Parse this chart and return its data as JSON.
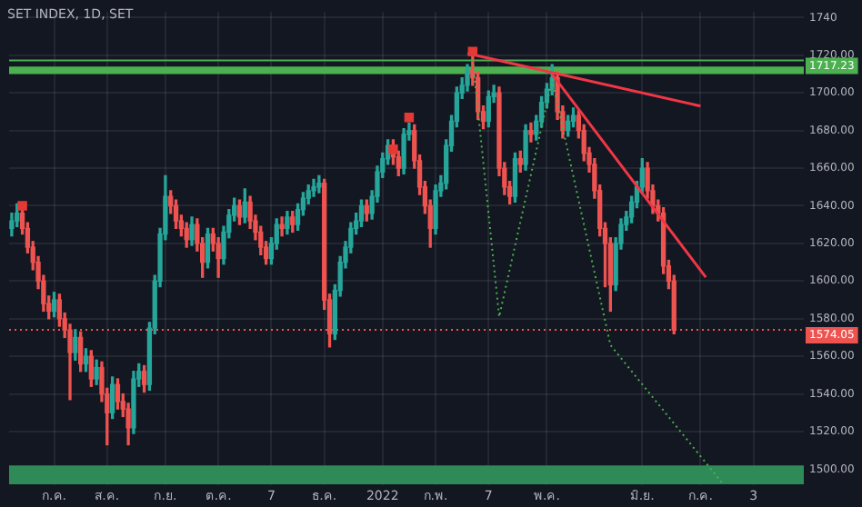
{
  "chart_data": {
    "type": "candlestick",
    "title": "SET INDEX, 1D, SET",
    "categories": [
      null,
      null,
      null,
      null,
      null,
      null,
      null,
      null,
      "ก.ค.",
      null,
      null,
      null,
      null,
      null,
      null,
      null,
      null,
      null,
      "ส.ค.",
      null,
      null,
      null,
      null,
      null,
      null,
      null,
      null,
      null,
      null,
      "ก.ย.",
      null,
      null,
      null,
      null,
      null,
      null,
      null,
      null,
      null,
      "ต.ค.",
      null,
      null,
      null,
      null,
      null,
      null,
      null,
      null,
      null,
      "7",
      null,
      null,
      null,
      null,
      null,
      null,
      null,
      null,
      null,
      "ธ.ค.",
      null,
      null,
      null,
      null,
      null,
      null,
      null,
      null,
      null,
      null,
      "2022",
      null,
      null,
      null,
      null,
      null,
      null,
      null,
      null,
      null,
      "ก.พ.",
      null,
      null,
      null,
      null,
      null,
      null,
      null,
      null,
      null,
      "7",
      null,
      null,
      null,
      null,
      null,
      null,
      null,
      null,
      null,
      null,
      "พ.ค.",
      null,
      null,
      null,
      null,
      null,
      null,
      null,
      null,
      null,
      null,
      null,
      null,
      null,
      null,
      null,
      null,
      null,
      "มิ.ย.",
      null,
      null,
      null,
      null,
      null,
      null,
      null,
      null,
      null,
      null,
      "ก.ค.",
      null,
      null,
      null,
      null,
      null,
      null,
      null,
      null,
      null,
      "3",
      null,
      null,
      null,
      null,
      null,
      null,
      null,
      null,
      null
    ],
    "colors": [
      "#26a69a",
      "#26a69a",
      "#ef5350",
      "#ef5350",
      "#ef5350",
      "#ef5350",
      "#ef5350",
      "#ef5350",
      "#26a69a",
      "#ef5350",
      "#ef5350",
      "#ef5350",
      "#26a69a",
      "#ef5350",
      "#26a69a",
      "#ef5350",
      "#26a69a",
      "#ef5350",
      "#ef5350",
      "#26a69a",
      "#ef5350",
      "#ef5350",
      "#ef5350",
      "#26a69a",
      "#26a69a",
      "#ef5350",
      "#26a69a",
      "#26a69a",
      "#26a69a",
      "#26a69a",
      "#ef5350",
      "#ef5350",
      "#ef5350",
      "#ef5350",
      "#26a69a",
      "#ef5350",
      "#ef5350",
      "#26a69a",
      "#ef5350",
      "#ef5350",
      "#26a69a",
      "#26a69a",
      "#26a69a",
      "#ef5350",
      "#26a69a",
      "#ef5350",
      "#ef5350",
      "#ef5350",
      "#ef5350",
      "#26a69a",
      "#26a69a",
      "#ef5350",
      "#26a69a",
      "#ef5350",
      "#26a69a",
      "#26a69a",
      "#26a69a",
      "#26a69a",
      "#26a69a",
      "#ef5350",
      "#ef5350",
      "#26a69a",
      "#26a69a",
      "#26a69a",
      "#26a69a",
      "#26a69a",
      "#26a69a",
      "#ef5350",
      "#26a69a",
      "#26a69a",
      "#26a69a",
      "#26a69a",
      "#ef5350",
      "#ef5350",
      "#26a69a",
      "#26a69a",
      "#ef5350",
      "#ef5350",
      "#ef5350",
      "#ef5350",
      "#26a69a",
      "#26a69a",
      "#26a69a",
      "#26a69a",
      "#26a69a",
      "#26a69a",
      "#26a69a",
      "#ef5350",
      "#ef5350",
      "#ef5350",
      "#26a69a",
      "#26a69a",
      "#ef5350",
      "#ef5350",
      "#ef5350",
      "#26a69a",
      "#ef5350",
      "#26a69a",
      "#ef5350",
      "#26a69a",
      "#26a69a",
      "#26a69a",
      "#26a69a",
      "#ef5350",
      "#ef5350",
      "#26a69a",
      "#26a69a",
      "#ef5350",
      "#ef5350",
      "#ef5350",
      "#ef5350",
      "#ef5350",
      "#ef5350",
      "#ef5350",
      "#26a69a",
      "#26a69a",
      "#26a69a",
      "#26a69a",
      "#26a69a",
      "#26a69a",
      "#ef5350",
      "#ef5350",
      "#ef5350",
      "#ef5350",
      "#ef5350",
      "#ef5350",
      null,
      null,
      null,
      null,
      null,
      null,
      null,
      null,
      null,
      null,
      null,
      null,
      null,
      null,
      null,
      null,
      null,
      null,
      null,
      null,
      null,
      null,
      null,
      null
    ],
    "ohlc": [
      [
        1628,
        1636,
        1624,
        1632
      ],
      [
        1632,
        1641,
        1629,
        1636
      ],
      [
        1636,
        1639,
        1625,
        1628
      ],
      [
        1628,
        1631,
        1615,
        1618
      ],
      [
        1618,
        1621,
        1606,
        1610
      ],
      [
        1610,
        1613,
        1596,
        1600
      ],
      [
        1600,
        1603,
        1584,
        1588
      ],
      [
        1588,
        1592,
        1580,
        1584
      ],
      [
        1584,
        1594,
        1581,
        1590
      ],
      [
        1590,
        1593,
        1576,
        1580
      ],
      [
        1580,
        1583,
        1570,
        1574
      ],
      [
        1574,
        1577,
        1537,
        1562
      ],
      [
        1562,
        1574,
        1558,
        1570
      ],
      [
        1570,
        1573,
        1552,
        1556
      ],
      [
        1556,
        1564,
        1552,
        1560
      ],
      [
        1560,
        1563,
        1544,
        1548
      ],
      [
        1548,
        1558,
        1545,
        1554
      ],
      [
        1554,
        1557,
        1536,
        1540
      ],
      [
        1540,
        1543,
        1513,
        1530
      ],
      [
        1530,
        1549,
        1527,
        1545
      ],
      [
        1545,
        1548,
        1532,
        1536
      ],
      [
        1536,
        1540,
        1528,
        1532
      ],
      [
        1532,
        1535,
        1513,
        1522
      ],
      [
        1522,
        1552,
        1519,
        1548
      ],
      [
        1548,
        1556,
        1544,
        1552
      ],
      [
        1552,
        1555,
        1541,
        1545
      ],
      [
        1545,
        1578,
        1542,
        1575
      ],
      [
        1575,
        1603,
        1572,
        1600
      ],
      [
        1600,
        1628,
        1597,
        1625
      ],
      [
        1625,
        1656,
        1622,
        1645
      ],
      [
        1645,
        1648,
        1636,
        1640
      ],
      [
        1640,
        1643,
        1628,
        1632
      ],
      [
        1632,
        1635,
        1624,
        1628
      ],
      [
        1628,
        1631,
        1618,
        1622
      ],
      [
        1622,
        1634,
        1619,
        1630
      ],
      [
        1630,
        1633,
        1616,
        1620
      ],
      [
        1620,
        1623,
        1602,
        1610
      ],
      [
        1610,
        1628,
        1607,
        1625
      ],
      [
        1625,
        1628,
        1616,
        1620
      ],
      [
        1620,
        1623,
        1602,
        1612
      ],
      [
        1612,
        1629,
        1609,
        1626
      ],
      [
        1626,
        1638,
        1623,
        1635
      ],
      [
        1635,
        1644,
        1632,
        1640
      ],
      [
        1640,
        1643,
        1630,
        1634
      ],
      [
        1634,
        1649,
        1631,
        1642
      ],
      [
        1642,
        1645,
        1628,
        1632
      ],
      [
        1632,
        1635,
        1622,
        1626
      ],
      [
        1626,
        1629,
        1614,
        1618
      ],
      [
        1618,
        1621,
        1609,
        1612
      ],
      [
        1612,
        1623,
        1609,
        1620
      ],
      [
        1620,
        1633,
        1617,
        1630
      ],
      [
        1630,
        1634,
        1624,
        1628
      ],
      [
        1628,
        1637,
        1625,
        1634
      ],
      [
        1634,
        1637,
        1626,
        1630
      ],
      [
        1630,
        1641,
        1627,
        1638
      ],
      [
        1638,
        1647,
        1635,
        1644
      ],
      [
        1644,
        1651,
        1641,
        1648
      ],
      [
        1648,
        1654,
        1645,
        1650
      ],
      [
        1650,
        1656,
        1647,
        1652
      ],
      [
        1652,
        1654,
        1585,
        1590
      ],
      [
        1590,
        1593,
        1565,
        1572
      ],
      [
        1572,
        1598,
        1569,
        1595
      ],
      [
        1595,
        1613,
        1592,
        1610
      ],
      [
        1610,
        1621,
        1607,
        1618
      ],
      [
        1618,
        1631,
        1615,
        1628
      ],
      [
        1628,
        1636,
        1625,
        1632
      ],
      [
        1632,
        1643,
        1629,
        1640
      ],
      [
        1640,
        1643,
        1632,
        1636
      ],
      [
        1636,
        1648,
        1633,
        1645
      ],
      [
        1645,
        1661,
        1642,
        1658
      ],
      [
        1658,
        1668,
        1655,
        1665
      ],
      [
        1665,
        1675,
        1662,
        1672
      ],
      [
        1672,
        1675,
        1662,
        1666
      ],
      [
        1666,
        1669,
        1656,
        1660
      ],
      [
        1660,
        1681,
        1657,
        1678
      ],
      [
        1678,
        1684,
        1675,
        1680
      ],
      [
        1680,
        1683,
        1660,
        1664
      ],
      [
        1664,
        1667,
        1646,
        1650
      ],
      [
        1650,
        1653,
        1636,
        1640
      ],
      [
        1640,
        1643,
        1618,
        1628
      ],
      [
        1628,
        1651,
        1625,
        1648
      ],
      [
        1648,
        1656,
        1645,
        1652
      ],
      [
        1652,
        1675,
        1649,
        1672
      ],
      [
        1672,
        1688,
        1669,
        1685
      ],
      [
        1685,
        1703,
        1682,
        1700
      ],
      [
        1700,
        1708,
        1697,
        1704
      ],
      [
        1704,
        1715,
        1701,
        1712
      ],
      [
        1712,
        1720,
        1704,
        1708
      ],
      [
        1708,
        1711,
        1686,
        1690
      ],
      [
        1690,
        1693,
        1681,
        1685
      ],
      [
        1685,
        1701,
        1682,
        1698
      ],
      [
        1698,
        1704,
        1695,
        1700
      ],
      [
        1700,
        1703,
        1656,
        1660
      ],
      [
        1660,
        1663,
        1646,
        1650
      ],
      [
        1650,
        1653,
        1641,
        1645
      ],
      [
        1645,
        1668,
        1642,
        1665
      ],
      [
        1665,
        1669,
        1658,
        1662
      ],
      [
        1662,
        1683,
        1659,
        1680
      ],
      [
        1680,
        1684,
        1674,
        1678
      ],
      [
        1678,
        1688,
        1675,
        1685
      ],
      [
        1685,
        1698,
        1682,
        1695
      ],
      [
        1695,
        1705,
        1692,
        1702
      ],
      [
        1702,
        1715,
        1699,
        1708
      ],
      [
        1708,
        1711,
        1686,
        1690
      ],
      [
        1690,
        1693,
        1676,
        1680
      ],
      [
        1680,
        1688,
        1677,
        1685
      ],
      [
        1685,
        1692,
        1682,
        1688
      ],
      [
        1688,
        1691,
        1676,
        1680
      ],
      [
        1680,
        1683,
        1664,
        1668
      ],
      [
        1668,
        1671,
        1658,
        1662
      ],
      [
        1662,
        1665,
        1644,
        1648
      ],
      [
        1648,
        1651,
        1624,
        1628
      ],
      [
        1628,
        1631,
        1597,
        1620
      ],
      [
        1620,
        1623,
        1584,
        1598
      ],
      [
        1598,
        1623,
        1595,
        1620
      ],
      [
        1620,
        1633,
        1617,
        1630
      ],
      [
        1630,
        1637,
        1627,
        1634
      ],
      [
        1634,
        1645,
        1631,
        1642
      ],
      [
        1642,
        1653,
        1639,
        1650
      ],
      [
        1650,
        1665,
        1647,
        1660
      ],
      [
        1660,
        1663,
        1644,
        1648
      ],
      [
        1648,
        1651,
        1636,
        1640
      ],
      [
        1640,
        1643,
        1632,
        1636
      ],
      [
        1636,
        1639,
        1604,
        1608
      ],
      [
        1608,
        1611,
        1596,
        1600
      ],
      [
        1600,
        1603,
        1572,
        1574.05
      ],
      null,
      null,
      null,
      null,
      null,
      null,
      null,
      null,
      null,
      null,
      null,
      null,
      null,
      null,
      null,
      null,
      null,
      null,
      null,
      null,
      null,
      null,
      null,
      null
    ],
    "series": [
      {
        "type": "line",
        "color": "#f23645",
        "values": [
          null,
          null,
          null,
          null,
          null,
          null,
          null,
          null,
          null,
          null,
          null,
          null,
          null,
          null,
          null,
          null,
          null,
          null,
          null,
          null,
          null,
          null,
          null,
          null,
          null,
          null,
          null,
          null,
          null,
          null,
          null,
          null,
          null,
          null,
          null,
          null,
          null,
          null,
          null,
          null,
          null,
          null,
          null,
          null,
          null,
          null,
          null,
          null,
          null,
          null,
          null,
          null,
          null,
          null,
          null,
          null,
          null,
          null,
          null,
          null,
          null,
          null,
          null,
          null,
          null,
          null,
          null,
          null,
          null,
          null,
          null,
          null,
          null,
          null,
          null,
          null,
          null,
          null,
          null,
          null,
          null,
          null,
          null,
          null,
          null,
          null,
          1721,
          null,
          null,
          null,
          null,
          null,
          null,
          null,
          null,
          null,
          null,
          null,
          null,
          null,
          null,
          null,
          null,
          null,
          null,
          null,
          null,
          null,
          null,
          null,
          null,
          null,
          null,
          null,
          null,
          null,
          null,
          null,
          null,
          null,
          null,
          null,
          null,
          null,
          null,
          null,
          null,
          null,
          null,
          null,
          1693,
          null,
          null,
          null,
          null,
          null,
          null,
          null,
          null,
          null,
          null,
          null,
          null,
          null,
          null,
          null,
          null,
          null,
          null,
          null
        ]
      },
      {
        "type": "line",
        "color": "#f23645",
        "values": [
          null,
          null,
          null,
          null,
          null,
          null,
          null,
          null,
          null,
          null,
          null,
          null,
          null,
          null,
          null,
          null,
          null,
          null,
          null,
          null,
          null,
          null,
          null,
          null,
          null,
          null,
          null,
          null,
          null,
          null,
          null,
          null,
          null,
          null,
          null,
          null,
          null,
          null,
          null,
          null,
          null,
          null,
          null,
          null,
          null,
          null,
          null,
          null,
          null,
          null,
          null,
          null,
          null,
          null,
          null,
          null,
          null,
          null,
          null,
          null,
          null,
          null,
          null,
          null,
          null,
          null,
          null,
          null,
          null,
          null,
          null,
          null,
          null,
          null,
          null,
          null,
          null,
          null,
          null,
          null,
          null,
          null,
          null,
          null,
          null,
          null,
          null,
          null,
          null,
          null,
          null,
          null,
          null,
          null,
          null,
          null,
          null,
          null,
          null,
          null,
          null,
          null,
          1710,
          null,
          null,
          null,
          null,
          null,
          null,
          null,
          null,
          null,
          null,
          null,
          null,
          null,
          null,
          null,
          null,
          null,
          null,
          null,
          null,
          null,
          null,
          null,
          null,
          null,
          null,
          null,
          null,
          1602,
          null,
          null,
          null,
          null,
          null,
          null,
          null,
          null,
          null,
          null,
          null,
          null,
          null,
          null,
          null,
          null,
          null,
          null
        ]
      },
      {
        "type": "line",
        "color": "#4caf50",
        "line_style": "dotted",
        "values": [
          null,
          null,
          null,
          null,
          null,
          null,
          null,
          null,
          null,
          null,
          null,
          null,
          null,
          null,
          null,
          null,
          null,
          null,
          null,
          null,
          null,
          null,
          null,
          null,
          null,
          null,
          null,
          null,
          null,
          null,
          null,
          null,
          null,
          null,
          null,
          null,
          null,
          null,
          null,
          null,
          null,
          null,
          null,
          null,
          null,
          null,
          null,
          null,
          null,
          null,
          null,
          null,
          null,
          null,
          null,
          null,
          null,
          null,
          null,
          null,
          null,
          null,
          null,
          null,
          null,
          null,
          null,
          null,
          null,
          null,
          null,
          null,
          null,
          null,
          null,
          null,
          null,
          null,
          null,
          null,
          null,
          null,
          null,
          null,
          null,
          null,
          null,
          1718,
          null,
          null,
          null,
          null,
          1581,
          null,
          null,
          null,
          null,
          null,
          null,
          null,
          null,
          null,
          1707,
          null,
          null,
          null,
          null,
          null,
          null,
          null,
          null,
          null,
          null,
          1566,
          null,
          null,
          null,
          null,
          null,
          null,
          null,
          null,
          null,
          null,
          null,
          null,
          null,
          null,
          null,
          null,
          null,
          null,
          null,
          null,
          1493,
          null,
          null,
          null,
          null,
          null,
          null,
          null,
          null,
          null,
          null,
          null,
          null,
          null,
          null,
          null
        ]
      },
      {
        "type": "scatter",
        "color": "#e53935",
        "marker": "square",
        "values": [
          null,
          null,
          1640,
          null,
          null,
          null,
          null,
          null,
          null,
          null,
          null,
          null,
          null,
          null,
          null,
          null,
          null,
          null,
          null,
          null,
          null,
          null,
          null,
          null,
          null,
          null,
          null,
          null,
          null,
          null,
          null,
          null,
          null,
          null,
          null,
          null,
          null,
          null,
          null,
          null,
          null,
          null,
          null,
          null,
          null,
          null,
          null,
          null,
          null,
          null,
          null,
          null,
          null,
          null,
          null,
          null,
          null,
          null,
          null,
          null,
          null,
          null,
          null,
          null,
          null,
          null,
          null,
          null,
          null,
          null,
          null,
          null,
          1670,
          null,
          null,
          1687,
          null,
          null,
          null,
          null,
          null,
          null,
          null,
          null,
          null,
          null,
          null,
          1722,
          null,
          null,
          null,
          null,
          null,
          null,
          null,
          null,
          null,
          null,
          null,
          null,
          null,
          null,
          null,
          null,
          null,
          null,
          null,
          null,
          null,
          null,
          null,
          null,
          null,
          null,
          null,
          null,
          null,
          null,
          null,
          null,
          null,
          null,
          null,
          null,
          null,
          null,
          null,
          null,
          null,
          null,
          null,
          null,
          null,
          null,
          null,
          null,
          null,
          null,
          null,
          null,
          null,
          null,
          null,
          null,
          null,
          null,
          null,
          null,
          null,
          null
        ]
      }
    ],
    "ylim": [
      1491.5,
      1743
    ],
    "yticks": [
      {
        "value": 1500,
        "label": "1500.00"
      },
      {
        "value": 1520,
        "label": "1520.00"
      },
      {
        "value": 1540,
        "label": "1540.00"
      },
      {
        "value": 1560,
        "label": "1560.00"
      },
      {
        "value": 1580,
        "label": "1580.00"
      },
      {
        "value": 1600,
        "label": "1600.00"
      },
      {
        "value": 1620,
        "label": "1620.00"
      },
      {
        "value": 1640,
        "label": "1640.00"
      },
      {
        "value": 1660,
        "label": "1660.00"
      },
      {
        "value": 1680,
        "label": "1680.00"
      },
      {
        "value": 1700,
        "label": "1700.00"
      },
      {
        "value": 1720,
        "label": "1720.00"
      },
      {
        "value": 1740,
        "label": "1740"
      }
    ],
    "ref_lines": [
      {
        "axis": "y",
        "value": 1717.23,
        "label": "1717.23",
        "color": "#4caf50"
      },
      {
        "axis": "y",
        "value": 1574.05,
        "label": "1574.05",
        "color": "#ef5350",
        "line_style": "dotted"
      }
    ],
    "bands": [
      {
        "axis": "y",
        "from": 1710,
        "to": 1714,
        "color": "#4caf50"
      },
      {
        "axis": "y",
        "from": 1492,
        "to": 1502,
        "color": "#2e8b57"
      }
    ],
    "grid": true,
    "legend": false
  }
}
